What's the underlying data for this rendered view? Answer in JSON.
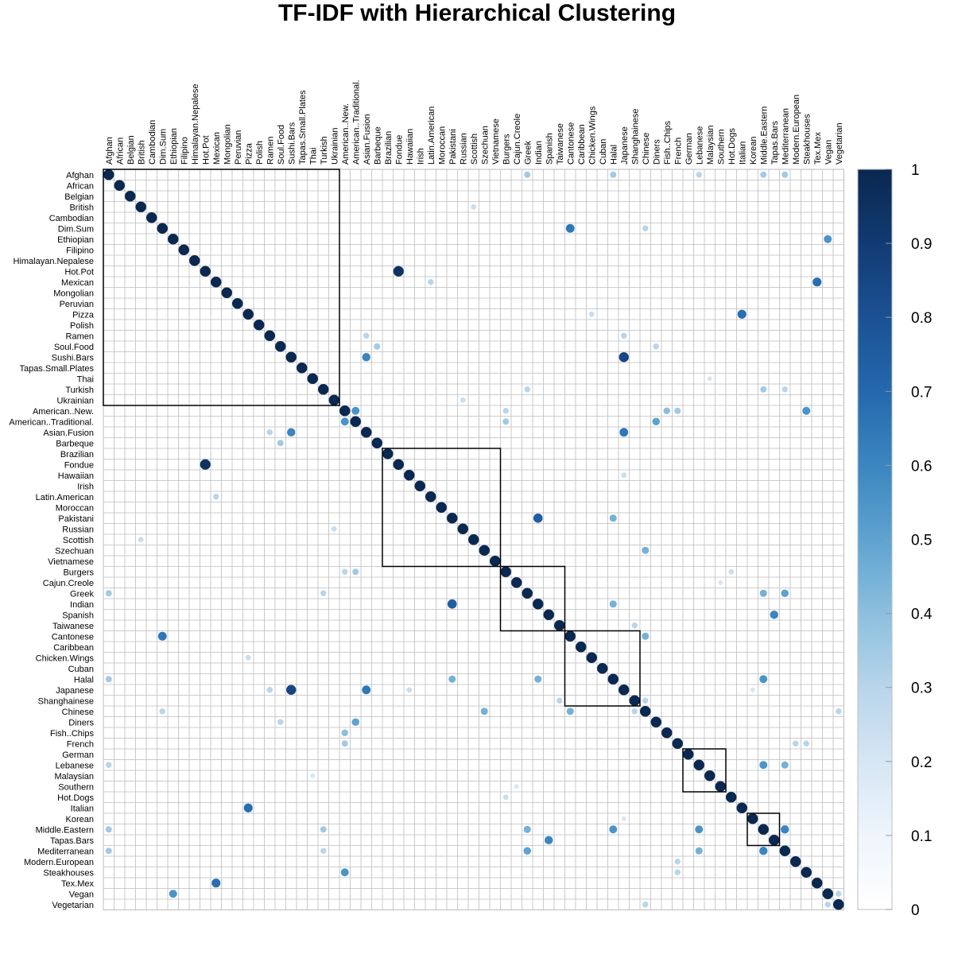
{
  "chart_data": {
    "type": "heatmap",
    "title": "TF-IDF with Hierarchical Clustering",
    "labels": [
      "Afghan",
      "African",
      "Belgian",
      "British",
      "Cambodian",
      "Dim.Sum",
      "Ethiopian",
      "Filipino",
      "Himalayan.Nepalese",
      "Hot.Pot",
      "Mexican",
      "Mongolian",
      "Peruvian",
      "Pizza",
      "Polish",
      "Ramen",
      "Soul.Food",
      "Sushi.Bars",
      "Tapas.Small.Plates",
      "Thai",
      "Turkish",
      "Ukrainian",
      "American..New.",
      "American..Traditional.",
      "Asian.Fusion",
      "Barbeque",
      "Brazilian",
      "Fondue",
      "Hawaiian",
      "Irish",
      "Latin.American",
      "Moroccan",
      "Pakistani",
      "Russian",
      "Scottish",
      "Szechuan",
      "Vietnamese",
      "Burgers",
      "Cajun.Creole",
      "Greek",
      "Indian",
      "Spanish",
      "Taiwanese",
      "Cantonese",
      "Caribbean",
      "Chicken.Wings",
      "Cuban",
      "Halal",
      "Japanese",
      "Shanghainese",
      "Chinese",
      "Diners",
      "Fish..Chips",
      "French",
      "German",
      "Lebanese",
      "Malaysian",
      "Southern",
      "Hot.Dogs",
      "Italian",
      "Korean",
      "Middle.Eastern",
      "Tapas.Bars",
      "Mediterranean",
      "Modern.European",
      "Steakhouses",
      "Tex.Mex",
      "Vegan",
      "Vegetarian"
    ],
    "diagonal_value": 1,
    "strong_pairs": [
      [
        "Dim.Sum",
        "Cantonese",
        0.65
      ],
      [
        "Ethiopian",
        "Vegan",
        0.55
      ],
      [
        "Hot.Pot",
        "Fondue",
        0.95
      ],
      [
        "Mexican",
        "Tex.Mex",
        0.68
      ],
      [
        "Pizza",
        "Italian",
        0.68
      ],
      [
        "Sushi.Bars",
        "Japanese",
        0.85
      ],
      [
        "Sushi.Bars",
        "Asian.Fusion",
        0.6
      ],
      [
        "Asian.Fusion",
        "Japanese",
        0.65
      ],
      [
        "American..New.",
        "American..Traditional.",
        0.55
      ],
      [
        "American..New.",
        "Steakhouses",
        0.55
      ],
      [
        "American..Traditional.",
        "Diners",
        0.5
      ],
      [
        "Pakistani",
        "Indian",
        0.75
      ],
      [
        "Greek",
        "Mediterranean",
        0.5
      ],
      [
        "Greek",
        "Middle.Eastern",
        0.45
      ],
      [
        "Lebanese",
        "Middle.Eastern",
        0.55
      ],
      [
        "Lebanese",
        "Mediterranean",
        0.45
      ],
      [
        "Halal",
        "Middle.Eastern",
        0.55
      ],
      [
        "Halal",
        "Indian",
        0.45
      ],
      [
        "Halal",
        "Pakistani",
        0.45
      ],
      [
        "Middle.Eastern",
        "Mediterranean",
        0.6
      ],
      [
        "Spanish",
        "Tapas.Bars",
        0.6
      ],
      [
        "Cantonese",
        "Chinese",
        0.45
      ],
      [
        "Chinese",
        "Szechuan",
        0.45
      ],
      [
        "Afghan",
        "Greek",
        0.35
      ],
      [
        "Afghan",
        "Halal",
        0.35
      ],
      [
        "Afghan",
        "Lebanese",
        0.3
      ],
      [
        "Afghan",
        "Middle.Eastern",
        0.35
      ],
      [
        "Afghan",
        "Mediterranean",
        0.35
      ],
      [
        "Turkish",
        "Middle.Eastern",
        0.35
      ],
      [
        "Turkish",
        "Greek",
        0.3
      ],
      [
        "Turkish",
        "Mediterranean",
        0.3
      ],
      [
        "Barbeque",
        "Soul.Food",
        0.35
      ],
      [
        "Ramen",
        "Japanese",
        0.3
      ],
      [
        "Ramen",
        "Asian.Fusion",
        0.3
      ],
      [
        "Fish..Chips",
        "American..New.",
        0.4
      ],
      [
        "French",
        "American..New.",
        0.35
      ],
      [
        "French",
        "Steakhouses",
        0.3
      ],
      [
        "Burgers",
        "American..Traditional.",
        0.35
      ],
      [
        "Burgers",
        "American..New.",
        0.3
      ],
      [
        "Chinese",
        "Dim.Sum",
        0.3
      ],
      [
        "Shanghainese",
        "Chinese",
        0.3
      ],
      [
        "Taiwanese",
        "Shanghainese",
        0.3
      ],
      [
        "Vegetarian",
        "Vegan",
        0.3
      ],
      [
        "Vegetarian",
        "Chinese",
        0.3
      ],
      [
        "Soul.Food",
        "Diners",
        0.3
      ],
      [
        "Modern.European",
        "French",
        0.3
      ],
      [
        "Latin.American",
        "Mexican",
        0.3
      ],
      [
        "Ukrainian",
        "Russian",
        0.25
      ],
      [
        "Scottish",
        "British",
        0.25
      ],
      [
        "Hawaiian",
        "Japanese",
        0.25
      ],
      [
        "Cajun.Creole",
        "Southern",
        0.2
      ],
      [
        "Hot.Dogs",
        "Burgers",
        0.25
      ],
      [
        "Chicken.Wings",
        "Pizza",
        0.25
      ],
      [
        "Korean",
        "Japanese",
        0.2
      ],
      [
        "Malaysian",
        "Thai",
        0.2
      ]
    ],
    "clusters": [
      [
        0,
        21
      ],
      [
        26,
        36
      ],
      [
        37,
        42
      ],
      [
        43,
        49
      ],
      [
        54,
        57
      ],
      [
        60,
        62
      ]
    ],
    "colorbar": {
      "min": 0,
      "max": 1,
      "ticks": [
        0,
        0.1,
        0.2,
        0.3,
        0.4,
        0.5,
        0.6,
        0.7,
        0.8,
        0.9,
        1
      ],
      "tick_labels": [
        "0",
        "0.1",
        "0.2",
        "0.3",
        "0.4",
        "0.5",
        "0.6",
        "0.7",
        "0.8",
        "0.9",
        "1"
      ]
    },
    "colors": {
      "low": "#f7fbff",
      "mid": "#6baed6",
      "high": "#08306b",
      "grid": "#bdbdbd",
      "cluster_box": "#000000"
    }
  }
}
